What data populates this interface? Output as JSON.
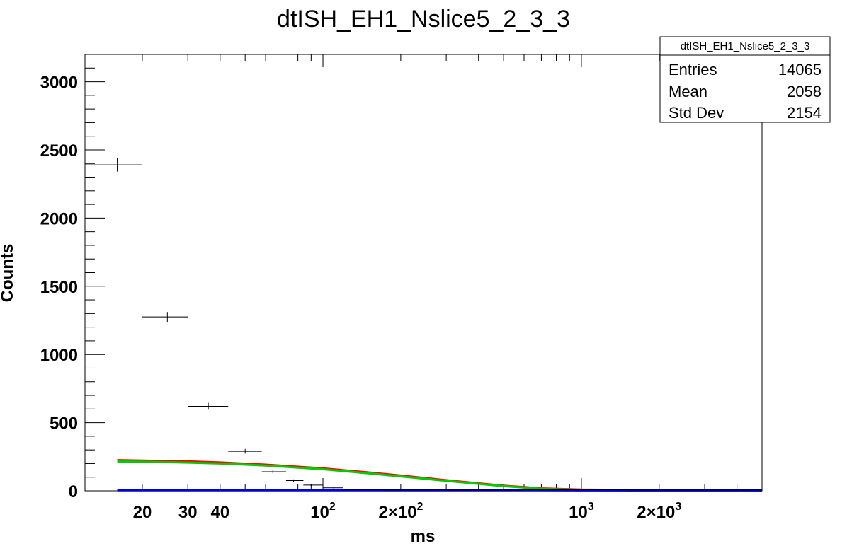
{
  "chart_data": {
    "type": "scatter",
    "title": "dtISH_EH1_Nslice5_2_3_3",
    "xlabel": "ms",
    "ylabel": "Counts",
    "x_scale": "log",
    "xlim": [
      12,
      5000
    ],
    "ylim": [
      0,
      3200
    ],
    "x_tick_labels": [
      {
        "value": 20,
        "base": "20",
        "exp": ""
      },
      {
        "value": 30,
        "base": "30",
        "exp": ""
      },
      {
        "value": 40,
        "base": "40",
        "exp": ""
      },
      {
        "value": 100,
        "base": "10",
        "exp": "2"
      },
      {
        "value": 200,
        "base": "2×10",
        "exp": "2"
      },
      {
        "value": 1000,
        "base": "10",
        "exp": "3"
      },
      {
        "value": 2000,
        "base": "2×10",
        "exp": "3"
      }
    ],
    "y_ticks": [
      0,
      500,
      1000,
      1500,
      2000,
      2500,
      3000
    ],
    "stats_box": {
      "name": "dtISH_EH1_Nslice5_2_3_3",
      "rows": [
        {
          "label": "Entries",
          "value": "14065"
        },
        {
          "label": "Mean",
          "value": "2058"
        },
        {
          "label": "Std Dev",
          "value": "2154"
        }
      ]
    },
    "histogram_points": [
      {
        "x": 16,
        "xlo": 12,
        "xhi": 20,
        "y": 2390,
        "err": 49
      },
      {
        "x": 25,
        "xlo": 20,
        "xhi": 30,
        "y": 1275,
        "err": 36
      },
      {
        "x": 36,
        "xlo": 30,
        "xhi": 43,
        "y": 620,
        "err": 25
      },
      {
        "x": 50,
        "xlo": 43,
        "xhi": 58,
        "y": 290,
        "err": 17
      },
      {
        "x": 64,
        "xlo": 58,
        "xhi": 72,
        "y": 140,
        "err": 12
      },
      {
        "x": 77,
        "xlo": 72,
        "xhi": 84,
        "y": 75,
        "err": 9
      },
      {
        "x": 90,
        "xlo": 84,
        "xhi": 100,
        "y": 42,
        "err": 7
      },
      {
        "x": 110,
        "xlo": 100,
        "xhi": 120,
        "y": 22,
        "err": 5
      },
      {
        "x": 145,
        "xlo": 120,
        "xhi": 170,
        "y": 10,
        "err": 4
      },
      {
        "x": 240,
        "xlo": 170,
        "xhi": 300,
        "y": 6,
        "err": 3
      },
      {
        "x": 450,
        "xlo": 300,
        "xhi": 600,
        "y": 5,
        "err": 3
      },
      {
        "x": 1000,
        "xlo": 600,
        "xhi": 1500,
        "y": 8,
        "err": 3
      },
      {
        "x": 2400,
        "xlo": 1500,
        "xhi": 5000,
        "y": 6,
        "err": 3
      }
    ],
    "series": [
      {
        "name": "",
        "color": "#ff0000",
        "x": [
          16,
          20,
          30,
          40,
          60,
          100,
          150,
          200,
          300,
          500,
          700,
          1000,
          1500,
          2000,
          3000,
          5000
        ],
        "y": [
          225,
          222,
          216,
          208,
          192,
          165,
          135,
          112,
          78,
          38,
          18,
          9,
          6,
          5,
          5,
          5
        ]
      },
      {
        "name": "",
        "color": "#00cc00",
        "x": [
          16,
          20,
          30,
          40,
          60,
          100,
          150,
          200,
          300,
          500,
          700,
          1000,
          1500,
          2000,
          3000,
          5000
        ],
        "y": [
          215,
          213,
          207,
          200,
          185,
          158,
          128,
          106,
          73,
          34,
          15,
          7,
          4,
          4,
          4,
          4
        ]
      },
      {
        "name": "",
        "color": "#0000cc",
        "x": [
          16,
          100,
          500,
          1000,
          5000
        ],
        "y": [
          4,
          4,
          4,
          3,
          3
        ]
      }
    ]
  }
}
